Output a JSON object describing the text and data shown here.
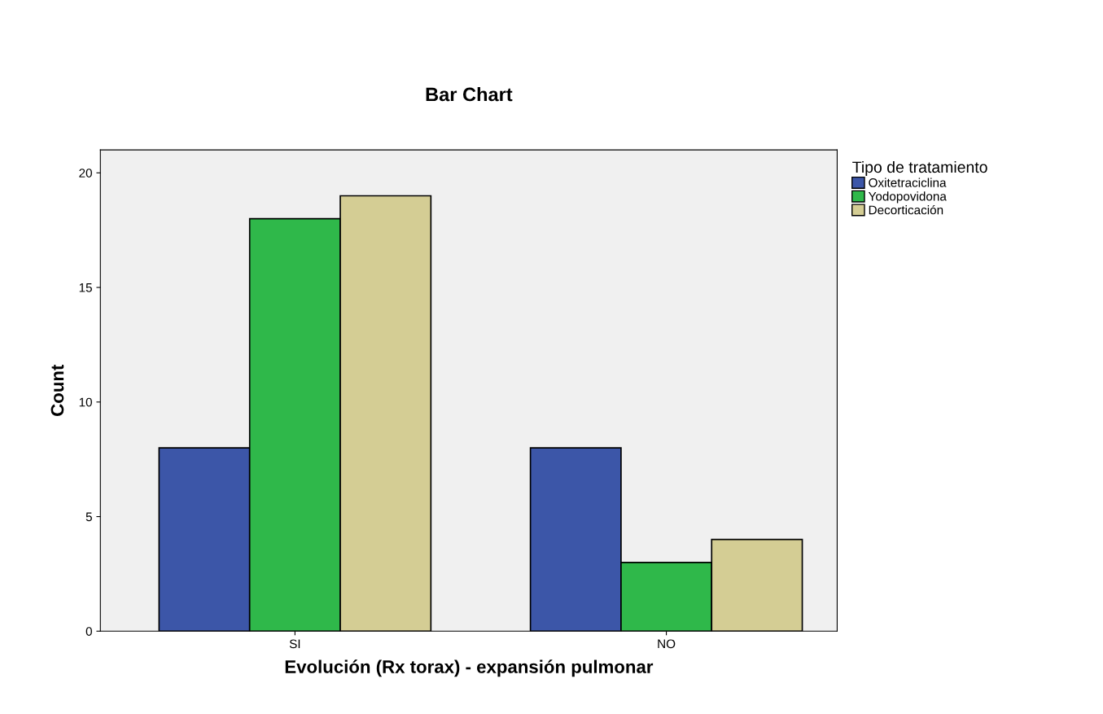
{
  "chart_data": {
    "type": "bar",
    "title": "Bar Chart",
    "xlabel": "Evolución (Rx torax) - expansión pulmonar",
    "ylabel": "Count",
    "legend_title": "Tipo de tratamiento",
    "categories": [
      "SI",
      "NO"
    ],
    "series": [
      {
        "name": "Oxitetraciclina",
        "color": "#3c56a8",
        "values": [
          8,
          8
        ]
      },
      {
        "name": "Yodopovidona",
        "color": "#2fb84a",
        "values": [
          18,
          3
        ]
      },
      {
        "name": "Decorticación",
        "color": "#d4cd94",
        "values": [
          19,
          4
        ]
      }
    ],
    "ylim": [
      0,
      21
    ],
    "yticks": [
      0,
      5,
      10,
      15,
      20
    ],
    "grid": false,
    "legend": "top right"
  }
}
